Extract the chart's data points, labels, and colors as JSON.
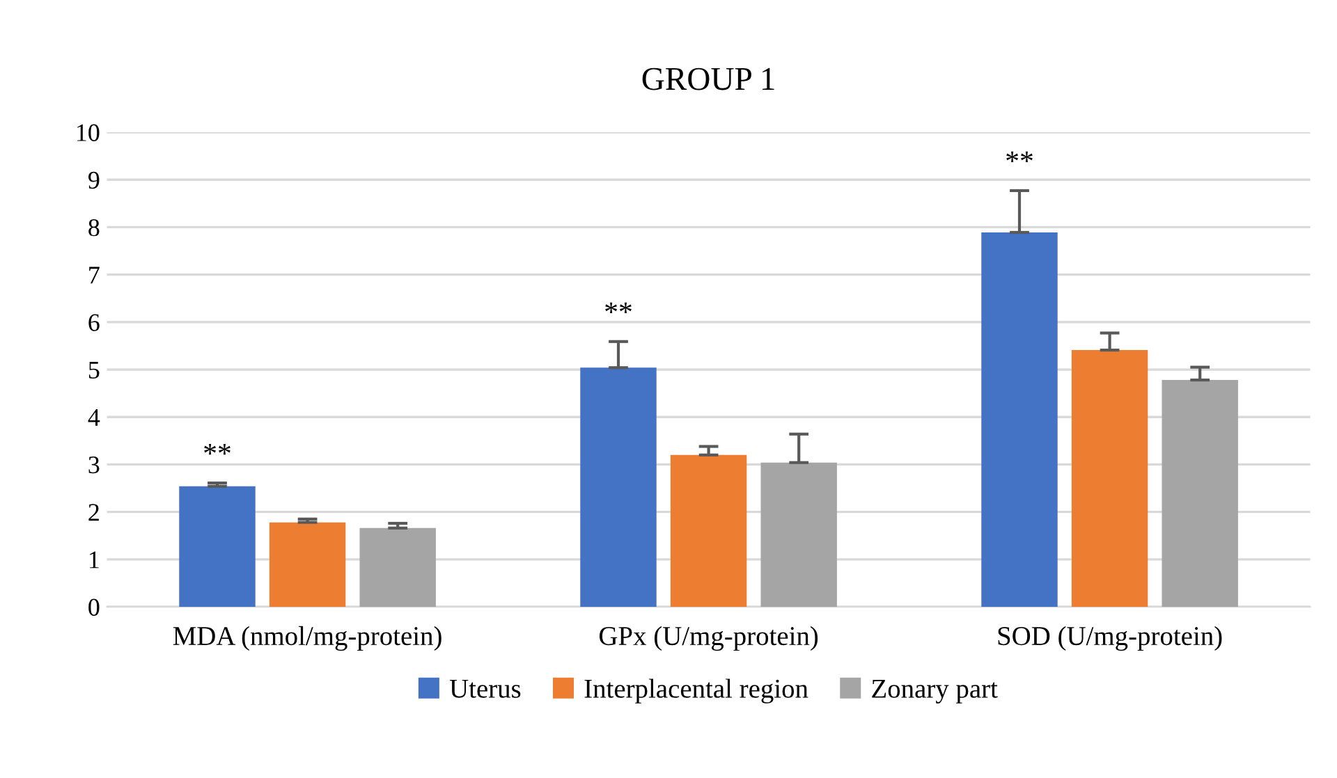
{
  "chart_data": {
    "type": "bar",
    "title": "GROUP 1",
    "categories": [
      "MDA (nmol/mg-protein)",
      "GPx (U/mg-protein)",
      "SOD (U/mg-protein)"
    ],
    "series": [
      {
        "name": "Uterus",
        "color": "#4472c4",
        "values": [
          2.54,
          5.04,
          7.89
        ],
        "errors": [
          [
            2.54,
            2.61
          ],
          [
            5.04,
            5.59
          ],
          [
            7.89,
            8.77
          ]
        ]
      },
      {
        "name": "Interplacental region",
        "color": "#ed7d31",
        "values": [
          1.78,
          3.2,
          5.41
        ],
        "errors": [
          [
            1.78,
            1.85
          ],
          [
            3.2,
            3.38
          ],
          [
            5.41,
            5.77
          ]
        ]
      },
      {
        "name": "Zonary part",
        "color": "#a5a5a5",
        "values": [
          1.66,
          3.04,
          4.78
        ],
        "errors": [
          [
            1.66,
            1.76
          ],
          [
            3.04,
            3.64
          ],
          [
            4.78,
            5.05
          ]
        ]
      }
    ],
    "ylim": [
      0,
      10
    ],
    "yticks": [
      0,
      1,
      2,
      3,
      4,
      5,
      6,
      7,
      8,
      9,
      10
    ],
    "grid": "y",
    "legend": "bottom",
    "annotations": [
      "**",
      "**",
      "**"
    ]
  }
}
